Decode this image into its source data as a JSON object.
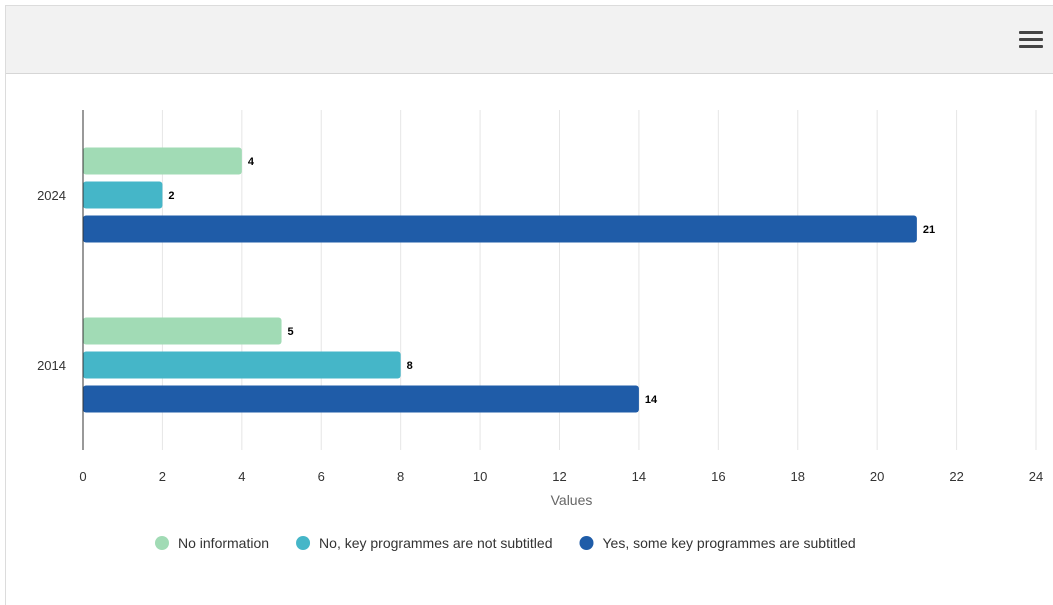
{
  "toolbar": {
    "menu_icon": "hamburger-menu-icon"
  },
  "chart_data": {
    "type": "bar",
    "orientation": "horizontal",
    "categories": [
      "2024",
      "2014"
    ],
    "series": [
      {
        "name": "No information",
        "color": "#a1dbb5",
        "values": [
          4,
          5
        ]
      },
      {
        "name": "No, key programmes are not subtitled",
        "color": "#45b6c8",
        "values": [
          2,
          8
        ]
      },
      {
        "name": "Yes, some key programmes are subtitled",
        "color": "#1f5ca8",
        "values": [
          21,
          14
        ]
      }
    ],
    "xlabel": "Values",
    "xlim": [
      0,
      24
    ],
    "xticks": [
      0,
      2,
      4,
      6,
      8,
      10,
      12,
      14,
      16,
      18,
      20,
      22,
      24
    ],
    "grid": "vertical",
    "legend_position": "bottom",
    "data_labels": true
  }
}
